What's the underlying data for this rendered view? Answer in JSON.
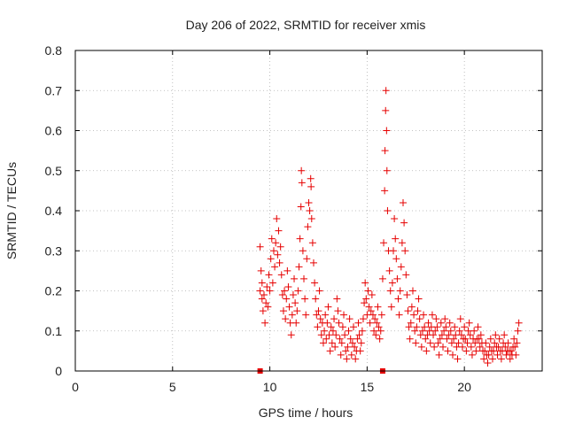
{
  "chart_data": {
    "type": "scatter",
    "title": "Day 206 of 2022, SRMTID for receiver xmis",
    "xlabel": "GPS time / hours",
    "ylabel": "SRMTID / TECUs",
    "xlim": [
      0,
      24
    ],
    "ylim": [
      0,
      0.8
    ],
    "x_ticks": [
      0,
      5,
      10,
      15,
      20
    ],
    "x_tick_labels": [
      "0",
      "5",
      "10",
      "15",
      "20"
    ],
    "y_ticks": [
      0,
      0.1,
      0.2,
      0.3,
      0.4,
      0.5,
      0.6,
      0.7,
      0.8
    ],
    "y_tick_labels": [
      "0",
      "0.1",
      "0.2",
      "0.3",
      "0.4",
      "0.5",
      "0.6",
      "0.7",
      "0.8"
    ],
    "grid": true,
    "marker": "plus",
    "color": "#e60000",
    "gap_markers_x": [
      9.5,
      15.8
    ],
    "series": [
      {
        "name": "xmis",
        "points": [
          [
            9.5,
            0.31
          ],
          [
            9.5,
            0.2
          ],
          [
            9.55,
            0.25
          ],
          [
            9.6,
            0.22
          ],
          [
            9.6,
            0.18
          ],
          [
            9.65,
            0.15
          ],
          [
            9.7,
            0.19
          ],
          [
            9.75,
            0.12
          ],
          [
            9.8,
            0.17
          ],
          [
            9.85,
            0.21
          ],
          [
            9.9,
            0.16
          ],
          [
            9.95,
            0.24
          ],
          [
            10.0,
            0.2
          ],
          [
            10.05,
            0.28
          ],
          [
            10.1,
            0.33
          ],
          [
            10.15,
            0.22
          ],
          [
            10.2,
            0.3
          ],
          [
            10.25,
            0.26
          ],
          [
            10.3,
            0.32
          ],
          [
            10.35,
            0.38
          ],
          [
            10.4,
            0.29
          ],
          [
            10.45,
            0.35
          ],
          [
            10.5,
            0.27
          ],
          [
            10.55,
            0.31
          ],
          [
            10.6,
            0.24
          ],
          [
            10.65,
            0.19
          ],
          [
            10.7,
            0.15
          ],
          [
            10.75,
            0.2
          ],
          [
            10.8,
            0.13
          ],
          [
            10.85,
            0.18
          ],
          [
            10.9,
            0.25
          ],
          [
            10.95,
            0.21
          ],
          [
            11.0,
            0.16
          ],
          [
            11.05,
            0.12
          ],
          [
            11.1,
            0.09
          ],
          [
            11.15,
            0.14
          ],
          [
            11.2,
            0.19
          ],
          [
            11.25,
            0.23
          ],
          [
            11.3,
            0.17
          ],
          [
            11.35,
            0.12
          ],
          [
            11.4,
            0.15
          ],
          [
            11.45,
            0.2
          ],
          [
            11.5,
            0.26
          ],
          [
            11.55,
            0.33
          ],
          [
            11.6,
            0.41
          ],
          [
            11.62,
            0.5
          ],
          [
            11.65,
            0.47
          ],
          [
            11.7,
            0.3
          ],
          [
            11.75,
            0.23
          ],
          [
            11.8,
            0.18
          ],
          [
            11.85,
            0.14
          ],
          [
            11.9,
            0.28
          ],
          [
            11.95,
            0.36
          ],
          [
            12.0,
            0.42
          ],
          [
            12.05,
            0.4
          ],
          [
            12.1,
            0.48
          ],
          [
            12.12,
            0.46
          ],
          [
            12.15,
            0.38
          ],
          [
            12.2,
            0.32
          ],
          [
            12.25,
            0.27
          ],
          [
            12.3,
            0.22
          ],
          [
            12.35,
            0.18
          ],
          [
            12.4,
            0.14
          ],
          [
            12.45,
            0.11
          ],
          [
            12.5,
            0.15
          ],
          [
            12.55,
            0.2
          ],
          [
            12.6,
            0.13
          ],
          [
            12.65,
            0.09
          ],
          [
            12.7,
            0.12
          ],
          [
            12.75,
            0.07
          ],
          [
            12.8,
            0.1
          ],
          [
            12.85,
            0.14
          ],
          [
            12.9,
            0.08
          ],
          [
            12.95,
            0.12
          ],
          [
            13.0,
            0.16
          ],
          [
            13.05,
            0.09
          ],
          [
            13.1,
            0.05
          ],
          [
            13.15,
            0.11
          ],
          [
            13.2,
            0.07
          ],
          [
            13.25,
            0.1
          ],
          [
            13.3,
            0.13
          ],
          [
            13.35,
            0.06
          ],
          [
            13.4,
            0.09
          ],
          [
            13.45,
            0.18
          ],
          [
            13.5,
            0.15
          ],
          [
            13.55,
            0.12
          ],
          [
            13.6,
            0.08
          ],
          [
            13.65,
            0.04
          ],
          [
            13.7,
            0.07
          ],
          [
            13.75,
            0.11
          ],
          [
            13.8,
            0.14
          ],
          [
            13.85,
            0.09
          ],
          [
            13.9,
            0.05
          ],
          [
            13.95,
            0.03
          ],
          [
            14.0,
            0.06
          ],
          [
            14.05,
            0.1
          ],
          [
            14.1,
            0.13
          ],
          [
            14.15,
            0.08
          ],
          [
            14.2,
            0.04
          ],
          [
            14.25,
            0.07
          ],
          [
            14.3,
            0.11
          ],
          [
            14.35,
            0.06
          ],
          [
            14.4,
            0.03
          ],
          [
            14.45,
            0.05
          ],
          [
            14.5,
            0.08
          ],
          [
            14.55,
            0.12
          ],
          [
            14.6,
            0.09
          ],
          [
            14.65,
            0.05
          ],
          [
            14.7,
            0.07
          ],
          [
            14.75,
            0.1
          ],
          [
            14.8,
            0.13
          ],
          [
            14.85,
            0.17
          ],
          [
            14.9,
            0.22
          ],
          [
            14.95,
            0.18
          ],
          [
            15.0,
            0.14
          ],
          [
            15.05,
            0.2
          ],
          [
            15.1,
            0.16
          ],
          [
            15.15,
            0.12
          ],
          [
            15.2,
            0.15
          ],
          [
            15.25,
            0.19
          ],
          [
            15.3,
            0.14
          ],
          [
            15.35,
            0.1
          ],
          [
            15.4,
            0.13
          ],
          [
            15.45,
            0.09
          ],
          [
            15.5,
            0.12
          ],
          [
            15.55,
            0.16
          ],
          [
            15.6,
            0.11
          ],
          [
            15.65,
            0.08
          ],
          [
            15.7,
            0.1
          ],
          [
            15.75,
            0.14
          ],
          [
            15.8,
            0.23
          ],
          [
            15.85,
            0.32
          ],
          [
            15.9,
            0.45
          ],
          [
            15.92,
            0.55
          ],
          [
            15.95,
            0.65
          ],
          [
            15.97,
            0.7
          ],
          [
            16.0,
            0.6
          ],
          [
            16.02,
            0.5
          ],
          [
            16.05,
            0.4
          ],
          [
            16.1,
            0.3
          ],
          [
            16.15,
            0.25
          ],
          [
            16.2,
            0.2
          ],
          [
            16.25,
            0.16
          ],
          [
            16.3,
            0.22
          ],
          [
            16.35,
            0.3
          ],
          [
            16.4,
            0.38
          ],
          [
            16.45,
            0.33
          ],
          [
            16.5,
            0.28
          ],
          [
            16.55,
            0.23
          ],
          [
            16.6,
            0.18
          ],
          [
            16.65,
            0.14
          ],
          [
            16.7,
            0.2
          ],
          [
            16.75,
            0.26
          ],
          [
            16.8,
            0.32
          ],
          [
            16.85,
            0.42
          ],
          [
            16.9,
            0.37
          ],
          [
            16.95,
            0.3
          ],
          [
            17.0,
            0.24
          ],
          [
            17.05,
            0.19
          ],
          [
            17.1,
            0.15
          ],
          [
            17.15,
            0.11
          ],
          [
            17.2,
            0.08
          ],
          [
            17.25,
            0.12
          ],
          [
            17.3,
            0.16
          ],
          [
            17.35,
            0.2
          ],
          [
            17.4,
            0.14
          ],
          [
            17.45,
            0.1
          ],
          [
            17.5,
            0.07
          ],
          [
            17.55,
            0.11
          ],
          [
            17.6,
            0.15
          ],
          [
            17.65,
            0.18
          ],
          [
            17.7,
            0.13
          ],
          [
            17.75,
            0.09
          ],
          [
            17.8,
            0.06
          ],
          [
            17.85,
            0.1
          ],
          [
            17.9,
            0.14
          ],
          [
            17.95,
            0.11
          ],
          [
            18.0,
            0.08
          ],
          [
            18.05,
            0.05
          ],
          [
            18.1,
            0.09
          ],
          [
            18.15,
            0.12
          ],
          [
            18.2,
            0.1
          ],
          [
            18.25,
            0.07
          ],
          [
            18.3,
            0.11
          ],
          [
            18.35,
            0.14
          ],
          [
            18.4,
            0.09
          ],
          [
            18.45,
            0.06
          ],
          [
            18.5,
            0.1
          ],
          [
            18.55,
            0.13
          ],
          [
            18.6,
            0.11
          ],
          [
            18.65,
            0.07
          ],
          [
            18.7,
            0.04
          ],
          [
            18.75,
            0.08
          ],
          [
            18.8,
            0.12
          ],
          [
            18.85,
            0.09
          ],
          [
            18.9,
            0.06
          ],
          [
            18.95,
            0.1
          ],
          [
            19.0,
            0.13
          ],
          [
            19.05,
            0.11
          ],
          [
            19.1,
            0.08
          ],
          [
            19.15,
            0.05
          ],
          [
            19.2,
            0.09
          ],
          [
            19.25,
            0.12
          ],
          [
            19.3,
            0.1
          ],
          [
            19.35,
            0.07
          ],
          [
            19.4,
            0.04
          ],
          [
            19.45,
            0.08
          ],
          [
            19.5,
            0.11
          ],
          [
            19.55,
            0.09
          ],
          [
            19.6,
            0.06
          ],
          [
            19.65,
            0.03
          ],
          [
            19.7,
            0.07
          ],
          [
            19.75,
            0.1
          ],
          [
            19.8,
            0.13
          ],
          [
            19.85,
            0.09
          ],
          [
            19.9,
            0.06
          ],
          [
            19.95,
            0.08
          ],
          [
            20.0,
            0.11
          ],
          [
            20.05,
            0.08
          ],
          [
            20.1,
            0.05
          ],
          [
            20.15,
            0.07
          ],
          [
            20.2,
            0.1
          ],
          [
            20.25,
            0.12
          ],
          [
            20.3,
            0.09
          ],
          [
            20.35,
            0.06
          ],
          [
            20.4,
            0.04
          ],
          [
            20.45,
            0.08
          ],
          [
            20.5,
            0.1
          ],
          [
            20.55,
            0.07
          ],
          [
            20.6,
            0.05
          ],
          [
            20.65,
            0.08
          ],
          [
            20.7,
            0.11
          ],
          [
            20.75,
            0.08
          ],
          [
            20.8,
            0.06
          ],
          [
            20.85,
            0.09
          ],
          [
            20.9,
            0.07
          ],
          [
            20.95,
            0.05
          ],
          [
            21.0,
            0.03
          ],
          [
            21.05,
            0.05
          ],
          [
            21.1,
            0.07
          ],
          [
            21.15,
            0.04
          ],
          [
            21.2,
            0.02
          ],
          [
            21.25,
            0.04
          ],
          [
            21.3,
            0.06
          ],
          [
            21.35,
            0.08
          ],
          [
            21.4,
            0.05
          ],
          [
            21.45,
            0.03
          ],
          [
            21.5,
            0.05
          ],
          [
            21.55,
            0.07
          ],
          [
            21.6,
            0.09
          ],
          [
            21.65,
            0.06
          ],
          [
            21.7,
            0.04
          ],
          [
            21.75,
            0.06
          ],
          [
            21.8,
            0.08
          ],
          [
            21.85,
            0.05
          ],
          [
            21.9,
            0.03
          ],
          [
            21.95,
            0.05
          ],
          [
            22.0,
            0.07
          ],
          [
            22.05,
            0.09
          ],
          [
            22.1,
            0.06
          ],
          [
            22.15,
            0.04
          ],
          [
            22.2,
            0.05
          ],
          [
            22.25,
            0.07
          ],
          [
            22.3,
            0.05
          ],
          [
            22.35,
            0.03
          ],
          [
            22.4,
            0.05
          ],
          [
            22.45,
            0.04
          ],
          [
            22.5,
            0.06
          ],
          [
            22.55,
            0.08
          ],
          [
            22.6,
            0.06
          ],
          [
            22.65,
            0.04
          ],
          [
            22.7,
            0.07
          ],
          [
            22.75,
            0.1
          ],
          [
            22.8,
            0.12
          ]
        ]
      }
    ]
  }
}
